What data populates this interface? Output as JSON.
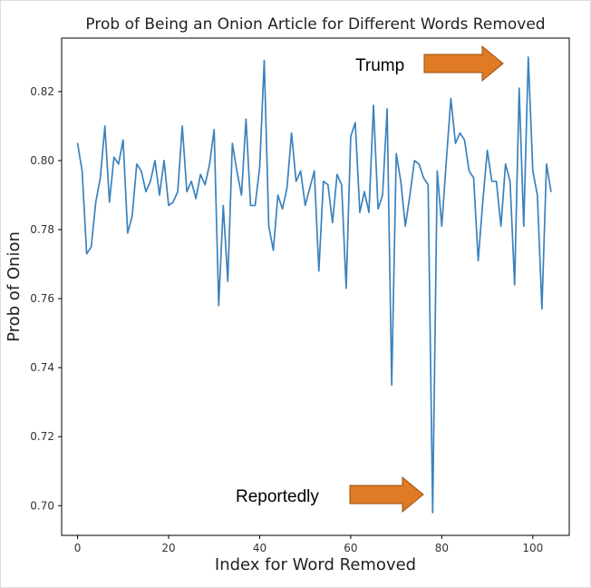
{
  "chart_data": {
    "type": "line",
    "title": "Prob of Being an Onion Article for Different Words Removed",
    "xlabel": "Index for Word Removed",
    "ylabel": "Prob of Onion",
    "xlim": [
      -3.5,
      108
    ],
    "ylim": [
      0.6914,
      0.8355
    ],
    "xticks": [
      0,
      20,
      40,
      60,
      80,
      100
    ],
    "yticks": [
      0.7,
      0.72,
      0.74,
      0.76,
      0.78,
      0.8,
      0.82
    ],
    "ytick_labels": [
      "0.70",
      "0.72",
      "0.74",
      "0.76",
      "0.78",
      "0.80",
      "0.82"
    ],
    "grid": false,
    "line_color": "#3b82bd",
    "series": [
      {
        "values": [
          0.805,
          0.797,
          0.773,
          0.775,
          0.788,
          0.795,
          0.81,
          0.788,
          0.801,
          0.799,
          0.806,
          0.779,
          0.784,
          0.799,
          0.797,
          0.791,
          0.794,
          0.8,
          0.79,
          0.8,
          0.787,
          0.788,
          0.791,
          0.81,
          0.791,
          0.794,
          0.789,
          0.796,
          0.793,
          0.799,
          0.809,
          0.758,
          0.787,
          0.765,
          0.805,
          0.797,
          0.79,
          0.812,
          0.787,
          0.787,
          0.798,
          0.829,
          0.781,
          0.774,
          0.79,
          0.786,
          0.792,
          0.808,
          0.794,
          0.797,
          0.787,
          0.792,
          0.797,
          0.768,
          0.794,
          0.793,
          0.782,
          0.796,
          0.793,
          0.763,
          0.807,
          0.811,
          0.785,
          0.791,
          0.785,
          0.816,
          0.786,
          0.79,
          0.815,
          0.735,
          0.802,
          0.794,
          0.781,
          0.79,
          0.8,
          0.799,
          0.795,
          0.793,
          0.698,
          0.797,
          0.781,
          0.8,
          0.818,
          0.805,
          0.808,
          0.806,
          0.797,
          0.795,
          0.771,
          0.788,
          0.803,
          0.794,
          0.794,
          0.781,
          0.799,
          0.794,
          0.764,
          0.821,
          0.781,
          0.83,
          0.797,
          0.79,
          0.757,
          0.799,
          0.791
        ]
      }
    ],
    "annotations": [
      {
        "text": "Trump",
        "arrow_color": "#e07a24"
      },
      {
        "text": "Reportedly",
        "arrow_color": "#e07a24"
      }
    ]
  }
}
